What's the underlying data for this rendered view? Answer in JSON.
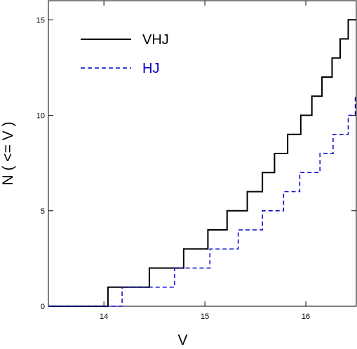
{
  "chart_data": {
    "type": "line",
    "step": true,
    "xlabel": "V",
    "ylabel": "N ( <= V )",
    "xlim": [
      13.45,
      16.5
    ],
    "ylim": [
      0,
      16
    ],
    "x_ticks": [
      14,
      15,
      16
    ],
    "x_tick_labels": [
      "14",
      "15",
      "16"
    ],
    "y_ticks": [
      0,
      5,
      10,
      15
    ],
    "y_tick_labels": [
      "0",
      "5",
      "10",
      "15"
    ],
    "legend": "top-left",
    "grid": false,
    "series": [
      {
        "name": "VHJ",
        "color": "#000000",
        "style": "solid",
        "steps_at": [
          14.04,
          14.45,
          14.79,
          15.03,
          15.22,
          15.42,
          15.57,
          15.69,
          15.82,
          15.95,
          16.06,
          16.16,
          16.26,
          16.34,
          16.42
        ],
        "values": [
          1,
          2,
          3,
          4,
          5,
          6,
          7,
          8,
          9,
          10,
          11,
          12,
          13,
          14,
          15
        ]
      },
      {
        "name": "HJ",
        "color": "#0000cc",
        "style": "dashed",
        "steps_at": [
          14.18,
          14.7,
          15.05,
          15.33,
          15.57,
          15.78,
          15.94,
          16.14,
          16.27,
          16.42,
          16.49
        ],
        "values": [
          1,
          2,
          3,
          4,
          5,
          6,
          7,
          8,
          9,
          10,
          11
        ]
      }
    ]
  }
}
